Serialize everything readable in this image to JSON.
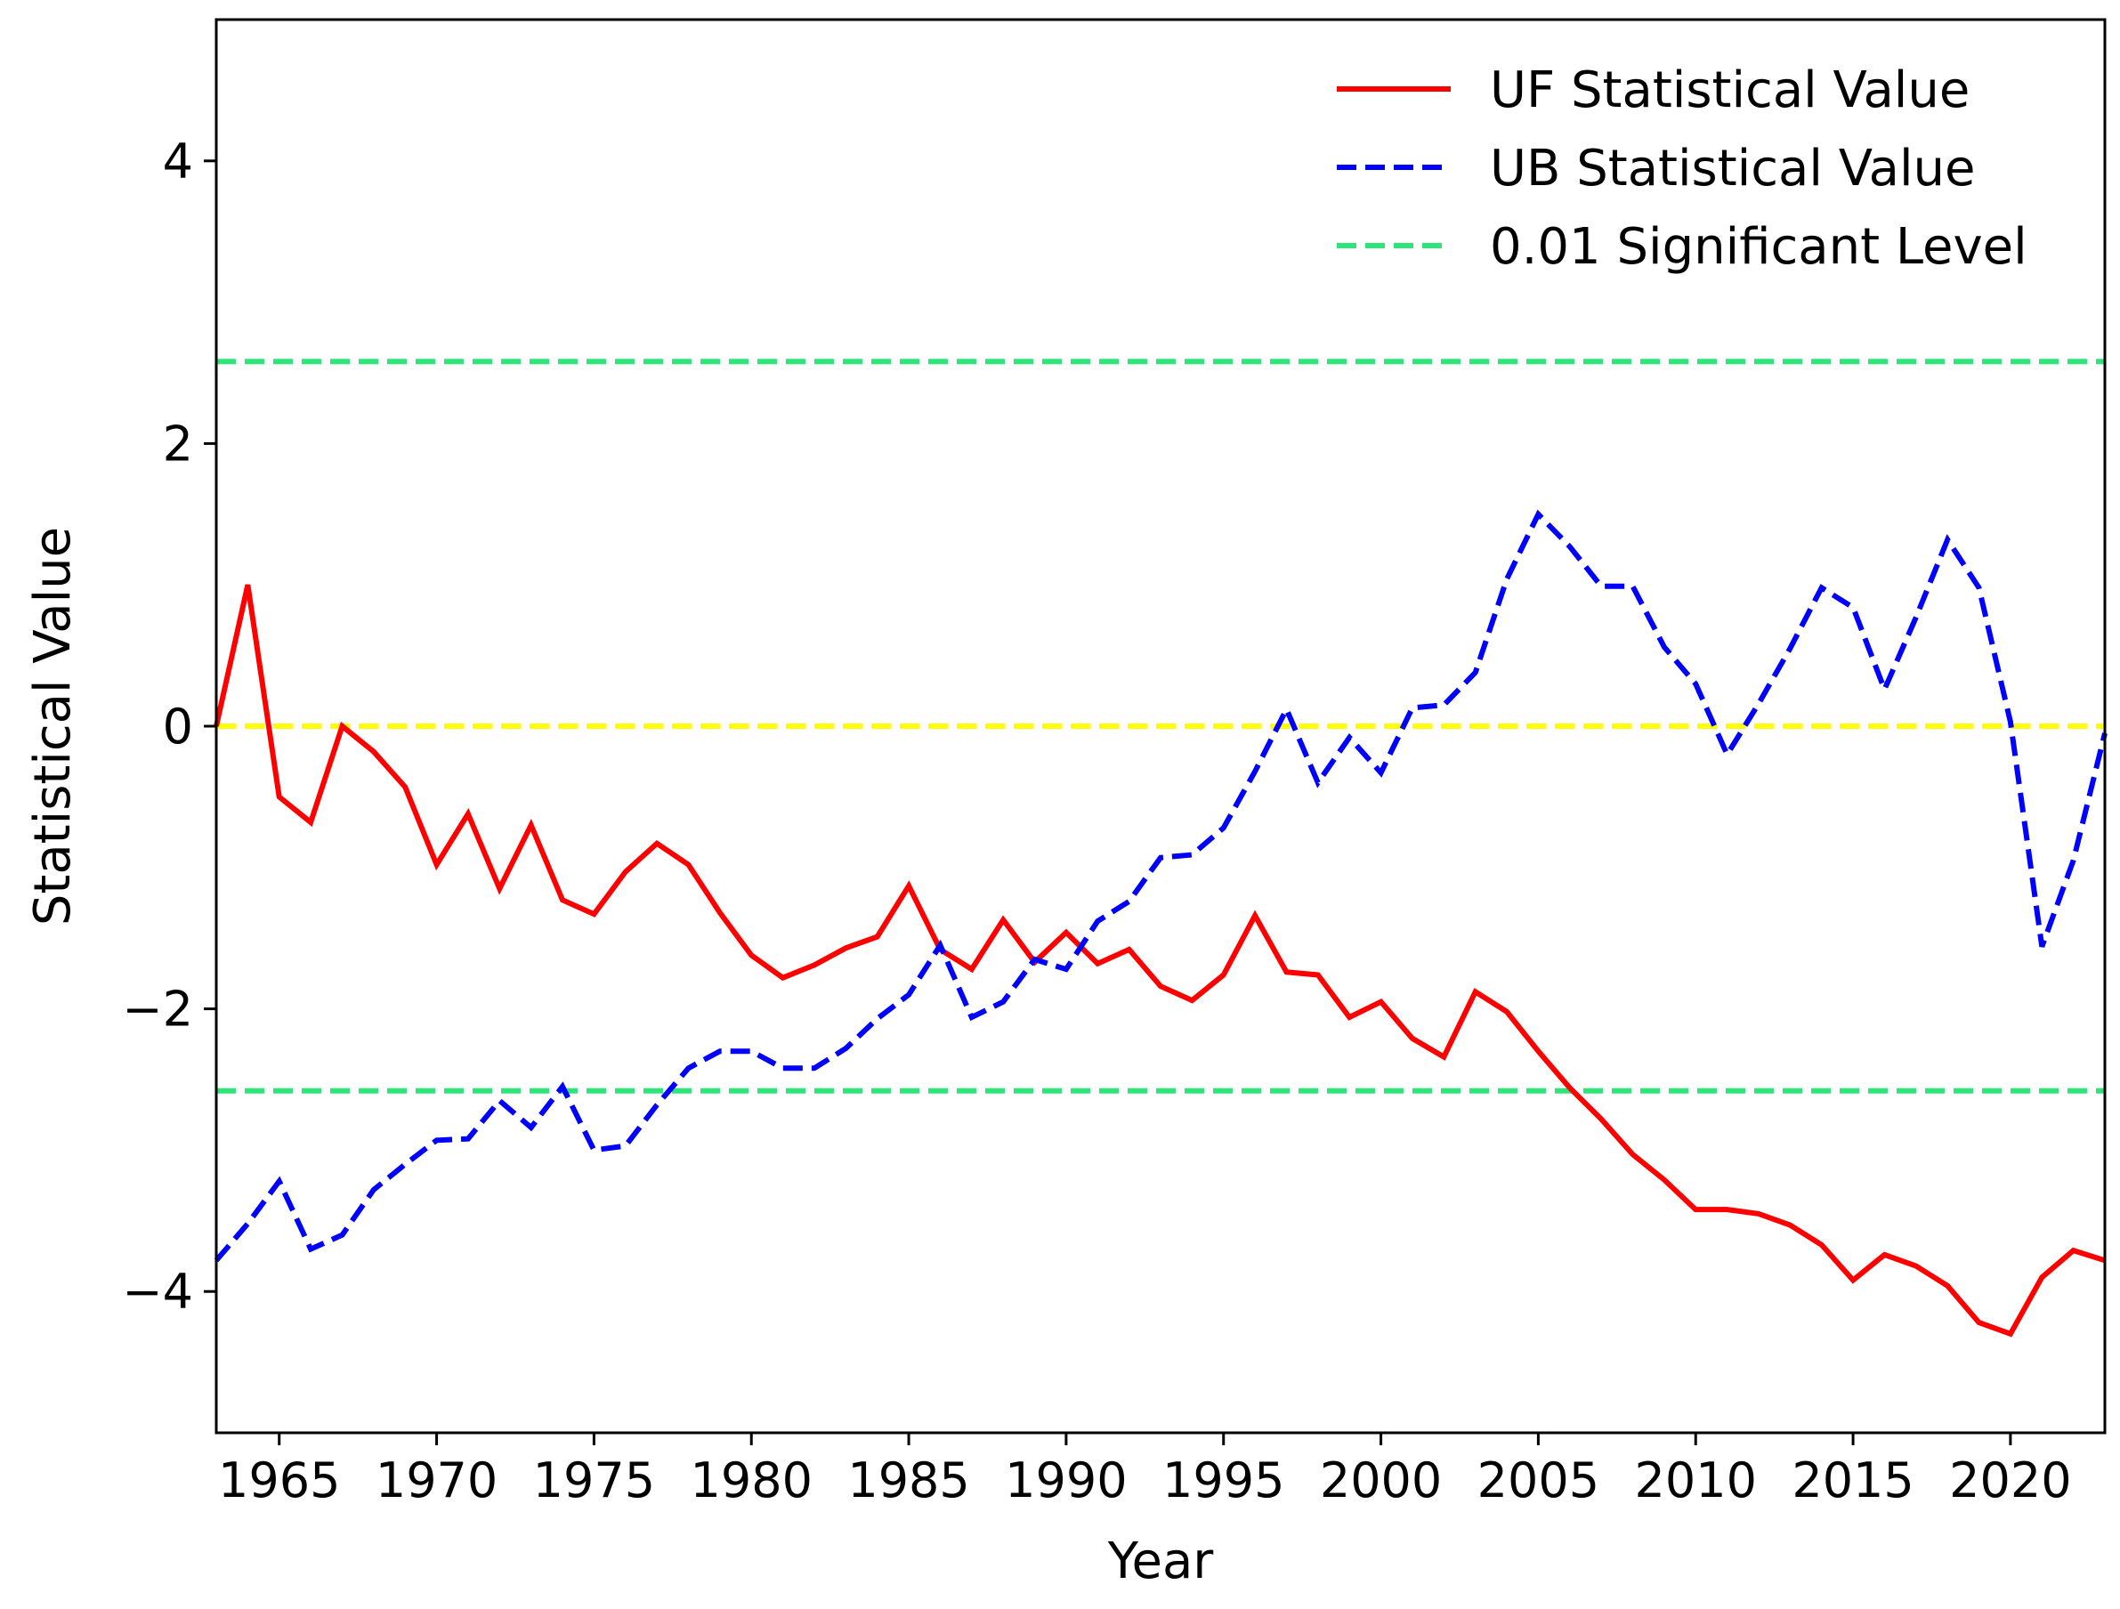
{
  "chart_data": {
    "type": "line",
    "title": "",
    "xlabel": "Year",
    "ylabel": "Statistical Value",
    "xlim": [
      1963,
      2023
    ],
    "ylim": [
      -5,
      5
    ],
    "xticks": [
      1965,
      1970,
      1975,
      1980,
      1985,
      1990,
      1995,
      2000,
      2005,
      2010,
      2015,
      2020
    ],
    "xtick_labels": [
      "1965",
      "1970",
      "1975",
      "1980",
      "1985",
      "1990",
      "1995",
      "2000",
      "2005",
      "2010",
      "2015",
      "2020"
    ],
    "yticks": [
      -4,
      -2,
      0,
      2,
      4
    ],
    "ytick_labels": [
      "−4",
      "−2",
      "0",
      "2",
      "4"
    ],
    "legend_position": "top-right",
    "x": [
      1963,
      1964,
      1965,
      1966,
      1967,
      1968,
      1969,
      1970,
      1971,
      1972,
      1973,
      1974,
      1975,
      1976,
      1977,
      1978,
      1979,
      1980,
      1981,
      1982,
      1983,
      1984,
      1985,
      1986,
      1987,
      1988,
      1989,
      1990,
      1991,
      1992,
      1993,
      1994,
      1995,
      1996,
      1997,
      1998,
      1999,
      2000,
      2001,
      2002,
      2003,
      2004,
      2005,
      2006,
      2007,
      2008,
      2009,
      2010,
      2011,
      2012,
      2013,
      2014,
      2015,
      2016,
      2017,
      2018,
      2019,
      2020,
      2021,
      2022,
      2023
    ],
    "series": [
      {
        "name": "UF Statistical Value",
        "color": "#ff0000",
        "style": "solid",
        "values": [
          0.0,
          1.0,
          -0.5,
          -0.68,
          0.0,
          -0.18,
          -0.43,
          -0.98,
          -0.62,
          -1.15,
          -0.7,
          -1.23,
          -1.33,
          -1.03,
          -0.83,
          -0.98,
          -1.32,
          -1.62,
          -1.78,
          -1.69,
          -1.57,
          -1.49,
          -1.13,
          -1.58,
          -1.72,
          -1.37,
          -1.67,
          -1.46,
          -1.68,
          -1.58,
          -1.84,
          -1.94,
          -1.76,
          -1.34,
          -1.74,
          -1.76,
          -2.06,
          -1.95,
          -2.21,
          -2.34,
          -1.88,
          -2.02,
          -2.3,
          -2.56,
          -2.78,
          -3.03,
          -3.21,
          -3.42,
          -3.42,
          -3.45,
          -3.53,
          -3.67,
          -3.92,
          -3.74,
          -3.82,
          -3.96,
          -4.22,
          -4.3,
          -3.9,
          -3.71,
          -3.78
        ]
      },
      {
        "name": "UB Statistical Value",
        "color": "#0000ff",
        "style": "dashed",
        "values": [
          -3.78,
          -3.52,
          -3.22,
          -3.7,
          -3.6,
          -3.28,
          -3.1,
          -2.93,
          -2.92,
          -2.65,
          -2.84,
          -2.55,
          -3.0,
          -2.97,
          -2.68,
          -2.42,
          -2.3,
          -2.3,
          -2.42,
          -2.42,
          -2.28,
          -2.07,
          -1.9,
          -1.55,
          -2.06,
          -1.95,
          -1.65,
          -1.72,
          -1.38,
          -1.24,
          -0.93,
          -0.91,
          -0.72,
          -0.32,
          0.12,
          -0.4,
          -0.08,
          -0.33,
          0.13,
          0.15,
          0.38,
          1.04,
          1.5,
          1.27,
          0.99,
          0.99,
          0.56,
          0.3,
          -0.2,
          0.16,
          0.55,
          0.98,
          0.84,
          0.26,
          0.77,
          1.32,
          0.98,
          0.03,
          -1.56,
          -0.95,
          -0.05
        ]
      }
    ],
    "reference_lines": [
      {
        "name": "0.01 Significant Level",
        "value": 2.58,
        "color": "#2ee57a",
        "style": "dashed"
      },
      {
        "name": "0.01 Significant Level",
        "value": -2.58,
        "color": "#2ee57a",
        "style": "dashed"
      },
      {
        "name": "zero line",
        "value": 0,
        "color": "#ffff00",
        "style": "dashed"
      }
    ],
    "legend": [
      "UF Statistical Value",
      "UB Statistical Value",
      "0.01 Significant Level"
    ]
  }
}
